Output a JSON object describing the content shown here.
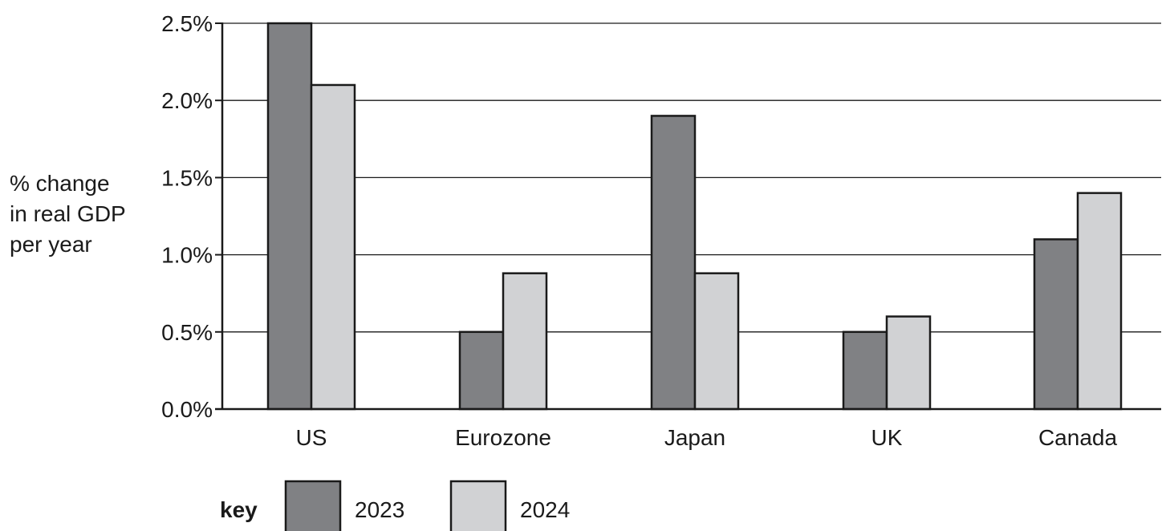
{
  "chart_data": {
    "type": "bar",
    "categories": [
      "US",
      "Eurozone",
      "Japan",
      "UK",
      "Canada"
    ],
    "series": [
      {
        "name": "2023",
        "values": [
          2.5,
          0.5,
          1.9,
          0.5,
          1.1
        ]
      },
      {
        "name": "2024",
        "values": [
          2.1,
          0.88,
          0.88,
          0.6,
          1.4
        ]
      }
    ],
    "ylabel_lines": [
      "% change",
      "in real GDP",
      "per year"
    ],
    "yticks": [
      "0.0%",
      "0.5%",
      "1.0%",
      "1.5%",
      "2.0%",
      "2.5%"
    ],
    "ytick_values": [
      0,
      0.5,
      1.0,
      1.5,
      2.0,
      2.5
    ],
    "ylim": [
      0,
      2.5
    ],
    "grid": true,
    "legend": {
      "title": "key",
      "placement": "bottom-left"
    },
    "colors": {
      "2023": "#808184",
      "2024": "#d1d2d4",
      "outline": "#1a1a1a",
      "grid": "#1a1a1a"
    }
  }
}
